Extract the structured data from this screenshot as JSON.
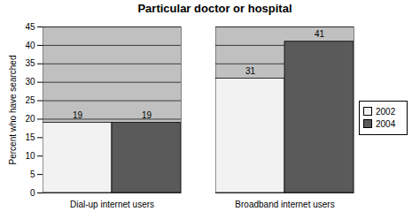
{
  "chart_data": {
    "type": "bar",
    "title": "Particular doctor or hospital",
    "categories": [
      "Dial-up internet users",
      "Broadband internet users"
    ],
    "series": [
      {
        "name": "2002",
        "color": "#f2f2f2",
        "values": [
          19,
          31
        ]
      },
      {
        "name": "2004",
        "color": "#5a5a5a",
        "values": [
          19,
          41
        ]
      }
    ],
    "y_label": "Percent who have searched",
    "ylim": [
      0,
      45
    ],
    "yticks": [
      0,
      5,
      10,
      15,
      20,
      25,
      30,
      35,
      40,
      45
    ],
    "grid": true,
    "data_labels": true,
    "legend": "right"
  }
}
